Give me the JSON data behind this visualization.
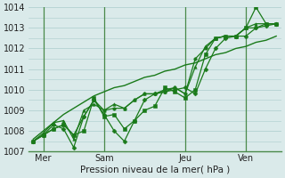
{
  "xlabel": "Pression niveau de la mer( hPa )",
  "ylim": [
    1007,
    1014
  ],
  "yticks": [
    1007,
    1008,
    1009,
    1010,
    1011,
    1012,
    1013,
    1014
  ],
  "background_color": "#daeaea",
  "grid_color": "#aacccc",
  "line_color": "#1a7a1a",
  "vline_color": "#4a8a4a",
  "xtick_labels": [
    "Mer",
    "Sam",
    "Jeu",
    "Ven"
  ],
  "xtick_positions": [
    1,
    7,
    15,
    21
  ],
  "vlines": [
    1,
    7,
    15,
    21
  ],
  "n_points": 25,
  "series": [
    [
      1007.5,
      1007.8,
      1008.3,
      1008.1,
      1007.2,
      1008.7,
      1009.5,
      1008.8,
      1008.0,
      1007.5,
      1008.5,
      1009.5,
      1009.8,
      1009.9,
      1010.0,
      1010.1,
      1009.8,
      1011.0,
      1012.0,
      1012.5,
      1012.6,
      1012.6,
      1013.0,
      1013.1,
      1013.2
    ],
    [
      1007.5,
      1007.8,
      1008.1,
      1008.3,
      1007.8,
      1008.0,
      1009.6,
      1008.7,
      1008.8,
      1008.1,
      1008.5,
      1009.0,
      1009.2,
      1010.1,
      1009.9,
      1009.6,
      1010.0,
      1011.7,
      1012.5,
      1012.6,
      1012.6,
      1013.0,
      1014.0,
      1013.2,
      1013.2
    ],
    [
      1007.5,
      1007.9,
      1008.4,
      1008.5,
      1007.6,
      1009.0,
      1009.3,
      1009.0,
      1009.3,
      1009.1,
      1009.5,
      1009.8,
      1009.8,
      1009.9,
      1010.1,
      1009.8,
      1011.1,
      1012.1,
      1012.5,
      1012.6,
      1012.6,
      1013.0,
      1013.2,
      1013.2,
      1013.2
    ],
    [
      1007.5,
      1007.8,
      1008.1,
      1008.3,
      1007.8,
      1008.7,
      1009.5,
      1009.0,
      1009.1,
      1009.1,
      1009.5,
      1009.8,
      1009.8,
      1010.0,
      1010.1,
      1009.8,
      1011.5,
      1012.0,
      1012.5,
      1012.6,
      1012.6,
      1013.0,
      1013.0,
      1013.2,
      1013.2
    ],
    [
      1007.6,
      1008.0,
      1008.4,
      1008.8,
      1009.1,
      1009.4,
      1009.7,
      1009.9,
      1010.1,
      1010.2,
      1010.4,
      1010.6,
      1010.7,
      1010.9,
      1011.0,
      1011.2,
      1011.3,
      1011.5,
      1011.7,
      1011.8,
      1012.0,
      1012.1,
      1012.3,
      1012.4,
      1012.6
    ]
  ],
  "marker_series": [
    0,
    1,
    2,
    3
  ],
  "trend_series": [
    4
  ],
  "marker_styles": [
    "D",
    "s",
    "^",
    "o"
  ],
  "marker_size": 2.5,
  "linewidth": 0.9,
  "trend_linewidth": 1.0
}
